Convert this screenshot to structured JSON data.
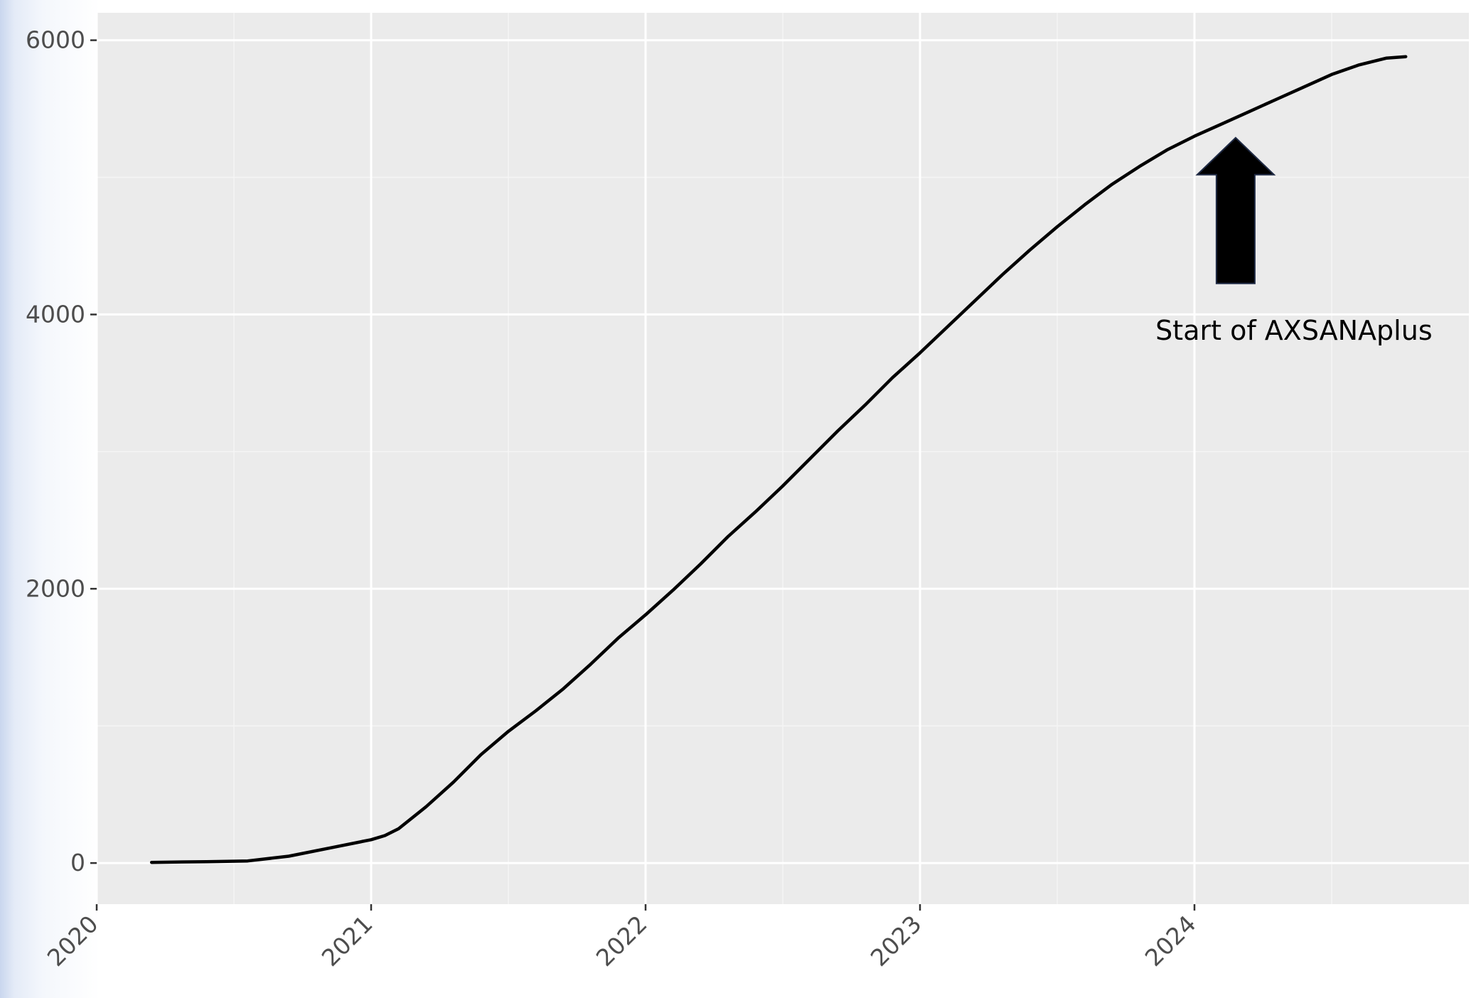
{
  "chart_data": {
    "type": "line",
    "title": "",
    "xlabel": "",
    "ylabel": "",
    "xlim": [
      2020,
      2025
    ],
    "ylim": [
      -300,
      6200
    ],
    "x_ticks": [
      2020,
      2021,
      2022,
      2023,
      2024
    ],
    "x_tick_labels": [
      "2020",
      "2021",
      "2022",
      "2023",
      "2024"
    ],
    "y_ticks": [
      0,
      2000,
      4000,
      6000
    ],
    "y_tick_labels": [
      "0",
      "2000",
      "4000",
      "6000"
    ],
    "grid": true,
    "series": [
      {
        "color": "#000000",
        "x": [
          2020.2,
          2020.4,
          2020.55,
          2020.7,
          2020.85,
          2021.0,
          2021.05,
          2021.1,
          2021.2,
          2021.3,
          2021.4,
          2021.5,
          2021.6,
          2021.7,
          2021.8,
          2021.9,
          2022.0,
          2022.1,
          2022.2,
          2022.3,
          2022.4,
          2022.5,
          2022.6,
          2022.7,
          2022.8,
          2022.9,
          2023.0,
          2023.1,
          2023.2,
          2023.3,
          2023.4,
          2023.5,
          2023.6,
          2023.7,
          2023.8,
          2023.9,
          2024.0,
          2024.1,
          2024.2,
          2024.3,
          2024.4,
          2024.5,
          2024.6,
          2024.7,
          2024.77
        ],
        "y": [
          5,
          10,
          15,
          50,
          110,
          170,
          200,
          250,
          410,
          590,
          790,
          960,
          1110,
          1270,
          1450,
          1640,
          1810,
          1990,
          2180,
          2380,
          2560,
          2750,
          2950,
          3150,
          3340,
          3540,
          3720,
          3910,
          4100,
          4290,
          4470,
          4640,
          4800,
          4950,
          5080,
          5200,
          5300,
          5390,
          5480,
          5570,
          5660,
          5750,
          5820,
          5870,
          5880
        ]
      }
    ],
    "annotations": [
      {
        "text": "Start of AXSANAplus",
        "x": 2024.15,
        "y": 5320,
        "shape": "arrow-up"
      }
    ]
  }
}
